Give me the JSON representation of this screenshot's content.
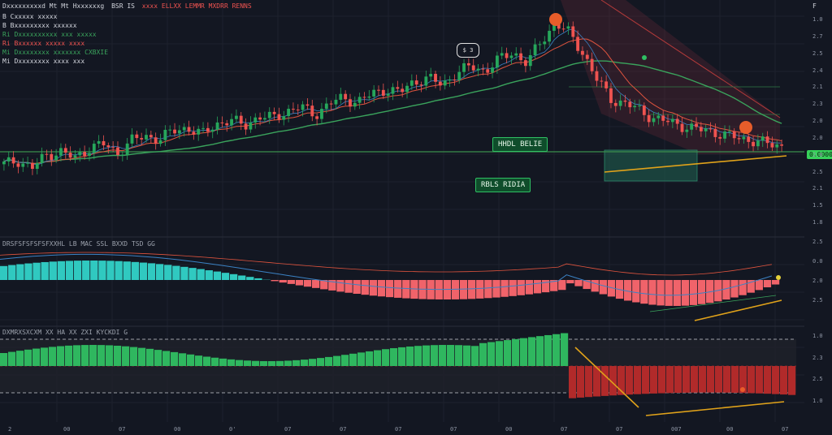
{
  "legend": {
    "title_a": "Dxxxxxxxxxd Mt Mt Hxxxxxxg",
    "title_b": "BSR IS",
    "title_c": "xxxx ELLXX LEMMR MXDRR RENNS",
    "lines": [
      {
        "text": "B Cxxxxx  xxxxx"
      },
      {
        "text": "B Bxxxxxxxxx  xxxxxx"
      },
      {
        "text": "Ri Dxxxxxxxxxx  xxx  xxxxx"
      },
      {
        "text": "Ri Bxxxxxx xxxxx  xxxx"
      },
      {
        "text": "Mi Dxxxxxxxx  xxxxxxx  CXBXIE"
      },
      {
        "text": "Mi Dxxxxxxxx  xxxx  xxx"
      }
    ]
  },
  "top_right_symbol": "F",
  "price_axis": [
    "1.0",
    "2.7",
    "2.5",
    "2.4",
    "2.1",
    "2.3",
    "2.0",
    "2.0",
    "2.8",
    "2.5",
    "2.1",
    "1.5",
    "1.8"
  ],
  "macd_axis": [
    "2.5",
    "0.0",
    "2.0",
    "2.5"
  ],
  "osc_axis": [
    "1.0",
    "2.3",
    "2.5",
    "1.0"
  ],
  "time_axis": [
    "2",
    "00",
    "07",
    "00",
    "0'",
    "07",
    "07",
    "07",
    "07",
    "00",
    "07",
    "07",
    "007",
    "00",
    "07"
  ],
  "callout_top": "$ 3",
  "current_price": "0.0000",
  "label_sell": "HHDL BELIE",
  "label_buy": "RBLS RIDIA",
  "macd_legend": "DRSFSFSFSFSFXXHL LB  MAC  SSL  BXXD  TSD  GG",
  "osc_legend": "DXMRXSXCXM  XX  HA  XX  ZXI  KYCKDI  G",
  "colors": {
    "bg": "#131722",
    "up": "#26a65b",
    "down": "#ef5350",
    "ma_green": "#3aa35c",
    "ma_red": "#e0543e",
    "ma_blue": "#3b82c4",
    "trend": "#e0a21a",
    "hist_pos": "#30c9c0",
    "hist_neg": "#f0636a",
    "osc_pos": "#2fb75f",
    "osc_neg": "#b12a2a"
  },
  "chart_data": {
    "type": "candlestick",
    "series": [
      {
        "name": "price",
        "values": [
          105,
          107,
          103,
          110,
          112,
          108,
          114,
          116,
          111,
          118,
          120,
          119,
          123,
          125,
          121,
          127,
          129,
          126,
          131,
          130,
          134,
          136,
          132,
          138,
          141,
          139,
          143,
          146,
          144,
          150,
          152,
          148,
          155,
          158,
          156,
          162,
          166,
          160,
          172,
          182,
          176,
          165,
          150,
          140,
          138,
          134,
          130,
          128,
          126,
          124,
          123,
          121,
          119,
          118,
          116,
          115
        ]
      }
    ]
  }
}
